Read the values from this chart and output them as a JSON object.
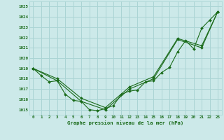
{
  "title": "Graphe pression niveau de la mer (hPa)",
  "bg_color": "#cce9e9",
  "grid_color": "#aad4d4",
  "line_color": "#1a6b1a",
  "marker_color": "#1a6b1a",
  "text_color": "#1a6b1a",
  "xlim": [
    -0.5,
    23.5
  ],
  "ylim": [
    1014.5,
    1025.5
  ],
  "yticks": [
    1015,
    1016,
    1017,
    1018,
    1019,
    1020,
    1021,
    1022,
    1023,
    1024,
    1025
  ],
  "xticks": [
    0,
    1,
    2,
    3,
    4,
    5,
    6,
    7,
    8,
    9,
    10,
    11,
    12,
    13,
    14,
    15,
    16,
    17,
    18,
    19,
    20,
    21,
    22,
    23
  ],
  "series1_x": [
    0,
    1,
    2,
    3,
    4,
    5,
    6,
    7,
    8,
    9,
    10,
    11,
    12,
    13,
    14,
    15,
    16,
    17,
    18,
    19,
    20,
    21,
    22,
    23
  ],
  "series1_y": [
    1019.0,
    1018.3,
    1017.7,
    1017.8,
    1016.5,
    1015.9,
    1015.8,
    1015.0,
    1014.9,
    1015.1,
    1015.4,
    1016.5,
    1016.8,
    1016.9,
    1017.7,
    1017.8,
    1018.6,
    1019.1,
    1020.6,
    1021.7,
    1020.9,
    1022.9,
    1023.7,
    1024.5
  ],
  "series2_x": [
    0,
    3,
    6,
    9,
    12,
    15,
    18,
    21,
    23
  ],
  "series2_y": [
    1019.0,
    1017.8,
    1015.8,
    1015.0,
    1017.0,
    1018.0,
    1021.8,
    1021.0,
    1024.5
  ],
  "series3_x": [
    0,
    3,
    6,
    9,
    12,
    15,
    18,
    21,
    23
  ],
  "series3_y": [
    1019.0,
    1018.0,
    1016.1,
    1015.2,
    1017.2,
    1018.2,
    1021.9,
    1021.2,
    1024.5
  ]
}
